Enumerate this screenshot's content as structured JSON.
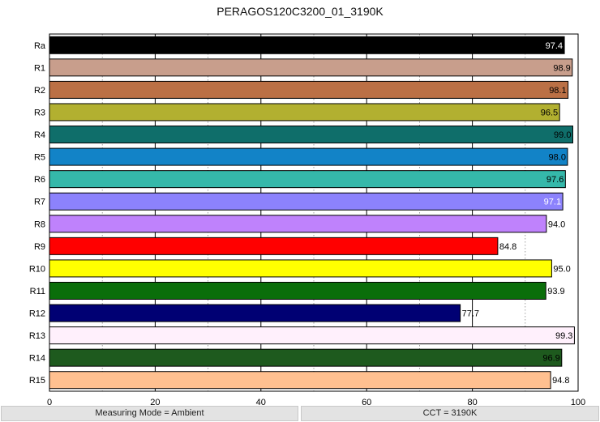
{
  "chart_data": {
    "type": "bar",
    "orientation": "horizontal",
    "title": "PERAGOS120C3200_01_3190K",
    "xlabel": "",
    "ylabel": "",
    "xlim": [
      0,
      100
    ],
    "x_ticks": [
      "0",
      "20",
      "40",
      "60",
      "80",
      "100"
    ],
    "grid": "vertical, solid at major ticks, dotted at minor ticks",
    "categories": [
      "Ra",
      "R1",
      "R2",
      "R3",
      "R4",
      "R5",
      "R6",
      "R7",
      "R8",
      "R9",
      "R10",
      "R11",
      "R12",
      "R13",
      "R14",
      "R15"
    ],
    "values": [
      97.4,
      98.9,
      98.1,
      96.5,
      99.0,
      98.0,
      97.6,
      97.1,
      94.0,
      84.8,
      95.0,
      93.9,
      77.7,
      99.3,
      96.9,
      94.8
    ],
    "value_labels": [
      "97.4",
      "98.9",
      "98.1",
      "96.5",
      "99.0",
      "98.0",
      "97.6",
      "97.1",
      "94.0",
      "84.8",
      "95.0",
      "93.9",
      "77.7",
      "99.3",
      "96.9",
      "94.8"
    ],
    "colors": [
      "#000000",
      "#c89e8c",
      "#bb7045",
      "#b2b030",
      "#0f6e6a",
      "#1283c7",
      "#35b8aa",
      "#8c82fc",
      "#bf82fc",
      "#ff0000",
      "#ffff00",
      "#0a6e0a",
      "#000073",
      "#fff0fc",
      "#1e5a1e",
      "#ffc090"
    ],
    "label_colors": [
      "#ffffff",
      "#000000",
      "#000000",
      "#000000",
      "#000000",
      "#000000",
      "#000000",
      "#ffffff",
      "#000000",
      "#000000",
      "#000000",
      "#000000",
      "#000000",
      "#000000",
      "#000000",
      "#000000"
    ]
  },
  "footer": {
    "left_label": "Measuring Mode = Ambient",
    "right_label": "CCT = 3190K"
  }
}
